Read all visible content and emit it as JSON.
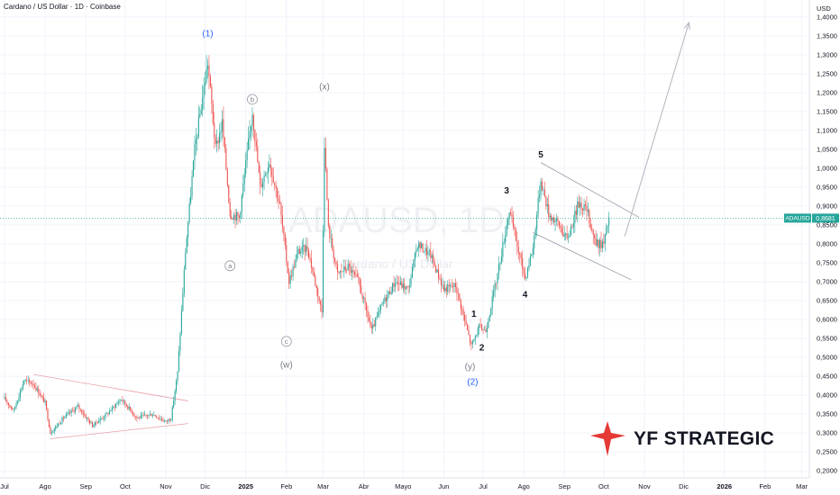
{
  "header": {
    "title": "Cardano / US Dollar · 1D · Coinbase"
  },
  "watermark": {
    "symbol": "ADAUSD, 1D",
    "name": "Cardano / US Dollar"
  },
  "price_tag": {
    "symbol": "ADAUSD",
    "value": "0,8681"
  },
  "logo": {
    "text": "YF STRATEGIC"
  },
  "colors": {
    "up": "#26a69a",
    "down": "#ef5350",
    "wave_blue": "#2962ff",
    "wave_gray": "#787b86",
    "price_line": "#26a69a",
    "logo_red": "#e53935",
    "logo_dark": "#131722"
  },
  "chart_data": {
    "type": "candlestick",
    "title": "Cardano / US Dollar · 1D · Coinbase",
    "ylabel": "USD",
    "currency_label": "USD",
    "ylim": [
      0.19,
      1.42
    ],
    "y_ticks": [
      "0,2000",
      "0,2500",
      "0,3000",
      "0,3500",
      "0,4000",
      "0,4500",
      "0,5000",
      "0,5500",
      "0,6000",
      "0,6500",
      "0,7000",
      "0,7500",
      "0,8000",
      "0,8500",
      "0,9000",
      "0,9500",
      "1,0000",
      "1,0500",
      "1,1000",
      "1,1500",
      "1,2000",
      "1,2500",
      "1,3000",
      "1,3500",
      "1,4000"
    ],
    "x_ticks": [
      {
        "date": "2024-07-01",
        "label": "Jul"
      },
      {
        "date": "2024-08-01",
        "label": "Ago"
      },
      {
        "date": "2024-09-01",
        "label": "Sep"
      },
      {
        "date": "2024-10-01",
        "label": "Oct"
      },
      {
        "date": "2024-11-01",
        "label": "Nov"
      },
      {
        "date": "2024-12-01",
        "label": "Dic"
      },
      {
        "date": "2025-01-01",
        "label": "2025"
      },
      {
        "date": "2025-02-01",
        "label": "Feb"
      },
      {
        "date": "2025-03-01",
        "label": "Mar"
      },
      {
        "date": "2025-04-01",
        "label": "Abr"
      },
      {
        "date": "2025-05-01",
        "label": "Mayo"
      },
      {
        "date": "2025-06-01",
        "label": "Jun"
      },
      {
        "date": "2025-07-01",
        "label": "Jul"
      },
      {
        "date": "2025-08-01",
        "label": "Ago"
      },
      {
        "date": "2025-09-01",
        "label": "Sep"
      },
      {
        "date": "2025-10-01",
        "label": "Oct"
      },
      {
        "date": "2025-11-01",
        "label": "Nov"
      },
      {
        "date": "2025-12-01",
        "label": "Dic"
      },
      {
        "date": "2026-01-01",
        "label": "2026"
      },
      {
        "date": "2026-02-01",
        "label": "Feb"
      },
      {
        "date": "2026-03-01",
        "label": "Mar"
      }
    ],
    "last_price": 0.8681,
    "price_path": [
      {
        "date": "2024-07-01",
        "close": 0.39
      },
      {
        "date": "2024-07-08",
        "close": 0.36
      },
      {
        "date": "2024-07-16",
        "close": 0.44
      },
      {
        "date": "2024-07-23",
        "close": 0.43
      },
      {
        "date": "2024-08-01",
        "close": 0.38
      },
      {
        "date": "2024-08-05",
        "close": 0.3
      },
      {
        "date": "2024-08-15",
        "close": 0.34
      },
      {
        "date": "2024-08-26",
        "close": 0.37
      },
      {
        "date": "2024-09-06",
        "close": 0.32
      },
      {
        "date": "2024-09-17",
        "close": 0.35
      },
      {
        "date": "2024-09-28",
        "close": 0.39
      },
      {
        "date": "2024-10-10",
        "close": 0.34
      },
      {
        "date": "2024-10-22",
        "close": 0.35
      },
      {
        "date": "2024-11-01",
        "close": 0.33
      },
      {
        "date": "2024-11-05",
        "close": 0.34
      },
      {
        "date": "2024-11-10",
        "close": 0.46
      },
      {
        "date": "2024-11-16",
        "close": 0.78
      },
      {
        "date": "2024-11-23",
        "close": 1.05
      },
      {
        "date": "2024-12-03",
        "close": 1.28
      },
      {
        "date": "2024-12-09",
        "close": 1.05
      },
      {
        "date": "2024-12-14",
        "close": 1.12
      },
      {
        "date": "2024-12-20",
        "close": 0.88
      },
      {
        "date": "2024-12-27",
        "close": 0.87
      },
      {
        "date": "2025-01-06",
        "close": 1.15
      },
      {
        "date": "2025-01-12",
        "close": 0.95
      },
      {
        "date": "2025-01-19",
        "close": 1.02
      },
      {
        "date": "2025-01-27",
        "close": 0.9
      },
      {
        "date": "2025-02-03",
        "close": 0.7
      },
      {
        "date": "2025-02-10",
        "close": 0.78
      },
      {
        "date": "2025-02-17",
        "close": 0.79
      },
      {
        "date": "2025-02-28",
        "close": 0.62
      },
      {
        "date": "2025-03-02",
        "close": 1.07
      },
      {
        "date": "2025-03-05",
        "close": 0.84
      },
      {
        "date": "2025-03-12",
        "close": 0.72
      },
      {
        "date": "2025-03-20",
        "close": 0.74
      },
      {
        "date": "2025-03-28",
        "close": 0.7
      },
      {
        "date": "2025-04-07",
        "close": 0.57
      },
      {
        "date": "2025-04-15",
        "close": 0.64
      },
      {
        "date": "2025-04-25",
        "close": 0.7
      },
      {
        "date": "2025-05-05",
        "close": 0.68
      },
      {
        "date": "2025-05-12",
        "close": 0.8
      },
      {
        "date": "2025-05-22",
        "close": 0.77
      },
      {
        "date": "2025-06-01",
        "close": 0.68
      },
      {
        "date": "2025-06-10",
        "close": 0.69
      },
      {
        "date": "2025-06-22",
        "close": 0.53
      },
      {
        "date": "2025-06-28",
        "close": 0.58
      },
      {
        "date": "2025-07-03",
        "close": 0.57
      },
      {
        "date": "2025-07-12",
        "close": 0.72
      },
      {
        "date": "2025-07-21",
        "close": 0.89
      },
      {
        "date": "2025-07-28",
        "close": 0.78
      },
      {
        "date": "2025-08-02",
        "close": 0.71
      },
      {
        "date": "2025-08-08",
        "close": 0.79
      },
      {
        "date": "2025-08-14",
        "close": 0.97
      },
      {
        "date": "2025-08-20",
        "close": 0.88
      },
      {
        "date": "2025-08-28",
        "close": 0.85
      },
      {
        "date": "2025-09-03",
        "close": 0.81
      },
      {
        "date": "2025-09-12",
        "close": 0.91
      },
      {
        "date": "2025-09-18",
        "close": 0.89
      },
      {
        "date": "2025-09-25",
        "close": 0.8
      },
      {
        "date": "2025-10-01",
        "close": 0.8
      },
      {
        "date": "2025-10-05",
        "close": 0.87
      }
    ],
    "annotations": [
      {
        "text": "(1)",
        "date": "2024-12-03",
        "price": 1.355,
        "color": "blue"
      },
      {
        "text": "a",
        "date": "2024-12-20",
        "price": 0.735,
        "color": "gray",
        "circled": true
      },
      {
        "text": "b",
        "date": "2025-01-06",
        "price": 1.175,
        "color": "gray",
        "circled": true
      },
      {
        "text": "c",
        "date": "2025-02-01",
        "price": 0.535,
        "color": "gray",
        "circled": true
      },
      {
        "text": "(w)",
        "date": "2025-02-01",
        "price": 0.48,
        "color": "gray"
      },
      {
        "text": "(x)",
        "date": "2025-03-02",
        "price": 1.215,
        "color": "gray"
      },
      {
        "text": "(y)",
        "date": "2025-06-21",
        "price": 0.475,
        "color": "gray"
      },
      {
        "text": "(2)",
        "date": "2025-06-23",
        "price": 0.435,
        "color": "blue"
      },
      {
        "text": "1",
        "date": "2025-06-24",
        "price": 0.615,
        "color": "black"
      },
      {
        "text": "2",
        "date": "2025-06-30",
        "price": 0.525,
        "color": "black"
      },
      {
        "text": "3",
        "date": "2025-07-19",
        "price": 0.94,
        "color": "black"
      },
      {
        "text": "4",
        "date": "2025-08-02",
        "price": 0.665,
        "color": "black"
      },
      {
        "text": "5",
        "date": "2025-08-14",
        "price": 1.035,
        "color": "black"
      }
    ],
    "trend_lines": [
      {
        "name": "triangle-upper",
        "from": {
          "date": "2024-07-23",
          "price": 0.455
        },
        "to": {
          "date": "2024-11-18",
          "price": 0.385
        }
      },
      {
        "name": "triangle-lower",
        "from": {
          "date": "2024-08-05",
          "price": 0.285
        },
        "to": {
          "date": "2024-11-18",
          "price": 0.325
        }
      },
      {
        "name": "channel-upper",
        "from": {
          "date": "2025-08-14",
          "price": 1.015
        },
        "to": {
          "date": "2025-10-28",
          "price": 0.87
        }
      },
      {
        "name": "channel-lower",
        "from": {
          "date": "2025-08-08",
          "price": 0.83
        },
        "to": {
          "date": "2025-10-22",
          "price": 0.705
        }
      },
      {
        "name": "projection-arrow",
        "from": {
          "date": "2025-10-17",
          "price": 0.82
        },
        "to": {
          "date": "2025-12-05",
          "price": 1.385
        }
      }
    ]
  }
}
